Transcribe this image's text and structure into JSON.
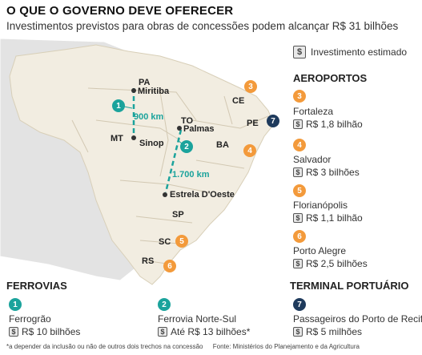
{
  "title": "O QUE O GOVERNO DEVE OFERECER",
  "subtitle": "Investimentos previstos para obras de concessões podem alcançar R$ 31 bilhões",
  "legend": {
    "label": "Investimento estimado",
    "icon": "dollar-icon"
  },
  "aeroportos": {
    "heading": "AEROPORTOS",
    "items": [
      {
        "num": "3",
        "name": "Fortaleza",
        "value": "R$ 1,8 bilhão"
      },
      {
        "num": "4",
        "name": "Salvador",
        "value": "R$ 3 bilhões"
      },
      {
        "num": "5",
        "name": "Florianópolis",
        "value": "R$ 1,1 bilhão"
      },
      {
        "num": "6",
        "name": "Porto Alegre",
        "value": "R$ 2,5 bilhões"
      }
    ]
  },
  "terminal": {
    "heading": "TERMINAL PORTUÁRIO",
    "item": {
      "num": "7",
      "name": "Passageiros do Porto de Recife",
      "value": "R$ 5 milhões"
    }
  },
  "ferrovias": {
    "heading": "FERROVIAS",
    "items": [
      {
        "num": "1",
        "name": "Ferrogrão",
        "value": "R$ 10 bilhões"
      },
      {
        "num": "2",
        "name": "Ferrovia Norte-Sul",
        "value": "Até R$ 13 bilhões*"
      }
    ]
  },
  "map": {
    "states": [
      "PA",
      "CE",
      "TO",
      "PE",
      "MT",
      "BA",
      "SP",
      "SC",
      "RS"
    ],
    "cities": [
      "Miritiba",
      "Sinop",
      "Palmas",
      "Estrela D'Oeste"
    ],
    "distances": [
      "900 km",
      "1.700 km"
    ],
    "markers": [
      "1",
      "2",
      "3",
      "4",
      "5",
      "6",
      "7"
    ]
  },
  "footnote": {
    "note": "*a depender da inclusão ou não de outros dois trechos na concessão",
    "source": "Fonte: Ministérios do Planejamento e da Agricultura"
  },
  "colors": {
    "orange": "#f39a3b",
    "teal": "#1ba39c",
    "navy": "#1e3a5c",
    "land": "#f2ede1",
    "sea": "#e4e4e4"
  }
}
